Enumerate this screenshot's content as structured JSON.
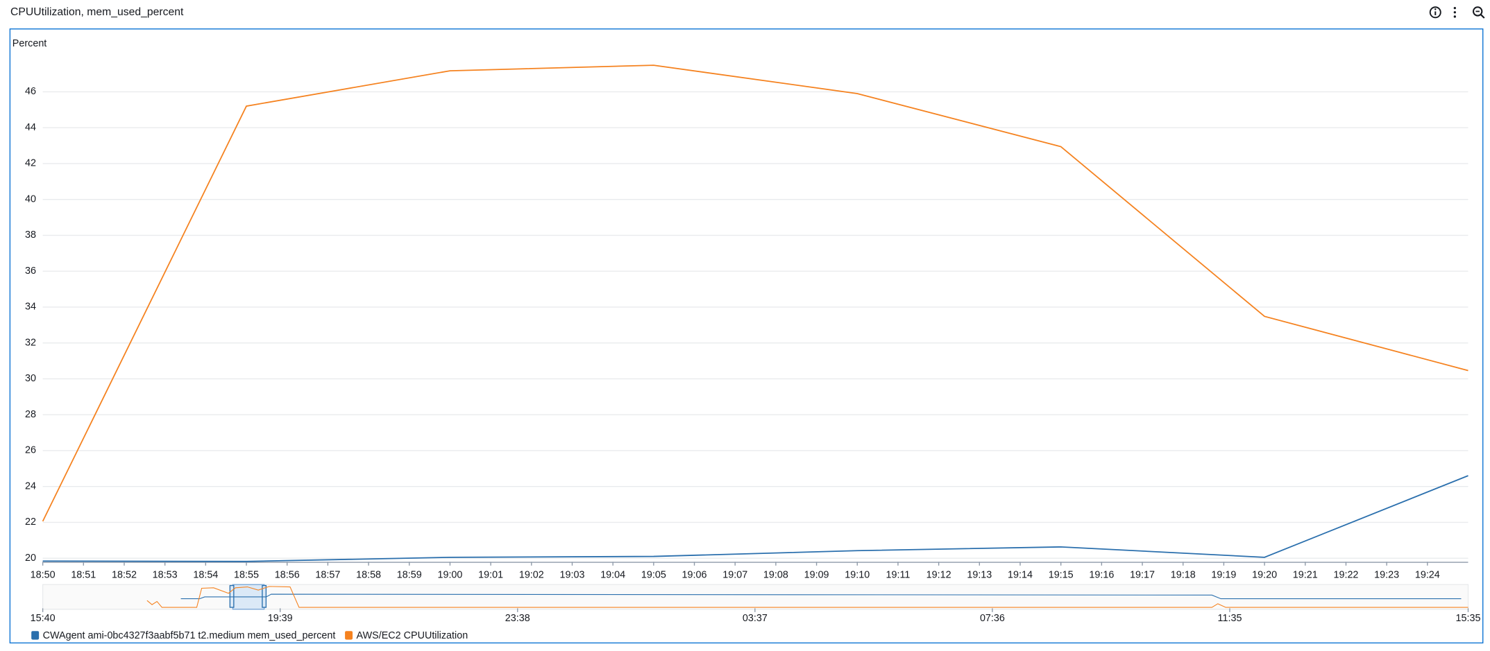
{
  "chart_data": [
    {
      "type": "line",
      "title": "CPUUtilization, mem_used_percent",
      "y_label": "Percent",
      "x": [
        0,
        5,
        10,
        15,
        20,
        25,
        30,
        35
      ],
      "xlim": [
        0,
        35
      ],
      "xticks": [
        {
          "value": 0,
          "label": "18:50"
        },
        {
          "value": 1,
          "label": "18:51"
        },
        {
          "value": 2,
          "label": "18:52"
        },
        {
          "value": 3,
          "label": "18:53"
        },
        {
          "value": 4,
          "label": "18:54"
        },
        {
          "value": 5,
          "label": "18:55"
        },
        {
          "value": 6,
          "label": "18:56"
        },
        {
          "value": 7,
          "label": "18:57"
        },
        {
          "value": 8,
          "label": "18:58"
        },
        {
          "value": 9,
          "label": "18:59"
        },
        {
          "value": 10,
          "label": "19:00"
        },
        {
          "value": 11,
          "label": "19:01"
        },
        {
          "value": 12,
          "label": "19:02"
        },
        {
          "value": 13,
          "label": "19:03"
        },
        {
          "value": 14,
          "label": "19:04"
        },
        {
          "value": 15,
          "label": "19:05"
        },
        {
          "value": 16,
          "label": "19:06"
        },
        {
          "value": 17,
          "label": "19:07"
        },
        {
          "value": 18,
          "label": "19:08"
        },
        {
          "value": 19,
          "label": "19:09"
        },
        {
          "value": 20,
          "label": "19:10"
        },
        {
          "value": 21,
          "label": "19:11"
        },
        {
          "value": 22,
          "label": "19:12"
        },
        {
          "value": 23,
          "label": "19:13"
        },
        {
          "value": 24,
          "label": "19:14"
        },
        {
          "value": 25,
          "label": "19:15"
        },
        {
          "value": 26,
          "label": "19:16"
        },
        {
          "value": 27,
          "label": "19:17"
        },
        {
          "value": 28,
          "label": "19:18"
        },
        {
          "value": 29,
          "label": "19:19"
        },
        {
          "value": 30,
          "label": "19:20"
        },
        {
          "value": 31,
          "label": "19:21"
        },
        {
          "value": 32,
          "label": "19:22"
        },
        {
          "value": 33,
          "label": "19:23"
        },
        {
          "value": 34,
          "label": "19:24"
        }
      ],
      "ylim": [
        19.8,
        49
      ],
      "yticks": [
        20,
        22,
        24,
        26,
        28,
        30,
        32,
        34,
        36,
        38,
        40,
        42,
        44,
        46
      ],
      "grid": true,
      "legend": "bottom",
      "series": [
        {
          "name": "CWAgent ami-0bc4327f3aabf5b71 t2.medium mem_used_percent",
          "color": "#2a6fad",
          "values": [
            19.84,
            19.82,
            20.05,
            20.1,
            20.42,
            20.63,
            20.05,
            24.6
          ]
        },
        {
          "name": "AWS/EC2 CPUUtilization",
          "color": "#f5821f",
          "values": [
            22.06,
            45.2,
            47.17,
            47.48,
            45.9,
            42.94,
            33.48,
            30.46
          ]
        }
      ]
    },
    {
      "type": "line",
      "xlim": [
        0,
        1435
      ],
      "xticks": [
        {
          "value": 0,
          "label": "15:40"
        },
        {
          "value": 239,
          "label": "19:39"
        },
        {
          "value": 478,
          "label": "23:38"
        },
        {
          "value": 717,
          "label": "03:37"
        },
        {
          "value": 956,
          "label": "07:36"
        },
        {
          "value": 1195,
          "label": "11:35"
        },
        {
          "value": 1435,
          "label": "15:35"
        }
      ],
      "ylim": [
        0,
        50
      ],
      "series": [
        {
          "color": "#2a6fad",
          "x": [
            139,
            158,
            163,
            225,
            230,
            1177,
            1186,
            1428
          ],
          "values": [
            21,
            21,
            25,
            25,
            31,
            29,
            21,
            21
          ]
        },
        {
          "color": "#f5821f",
          "x": [
            105,
            110,
            115,
            120,
            155,
            160,
            172,
            187,
            194,
            206,
            217,
            228,
            249,
            258,
            1177,
            1183,
            1191,
            1435
          ],
          "values": [
            17,
            8,
            15,
            2,
            2,
            44,
            45,
            33,
            45,
            47,
            40,
            48,
            47,
            2,
            2,
            10,
            2,
            2
          ]
        }
      ]
    }
  ]
}
